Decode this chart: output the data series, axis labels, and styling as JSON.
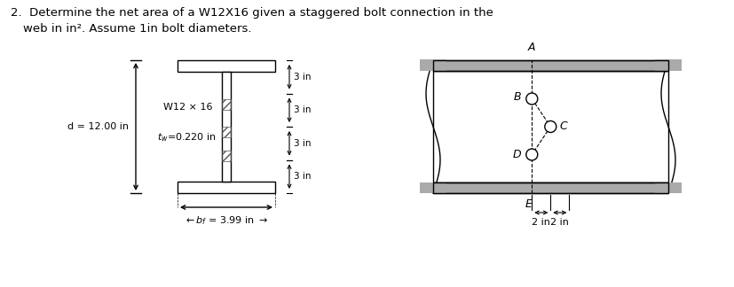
{
  "title_line1": "2.  Determine the net area of a W12X16 given a staggered bolt connection in the",
  "title_line2": "web in in². Assume 1in bolt diameters.",
  "d_label": "d = 12.00 in",
  "tw_label": "$t_w$=0.220 in",
  "section_label": "W12 × 16",
  "bf_text": "$\\leftarrow b_f$ = 3.99 in $\\rightarrow$",
  "spacing_labels": [
    "3 in",
    "3 in",
    "3 in",
    "3 in"
  ],
  "bolt_labels": [
    "A",
    "B",
    "C",
    "D",
    "E"
  ],
  "dim_labels": [
    "2 in",
    "2 in"
  ],
  "bg_color": "#ffffff",
  "line_color": "#000000",
  "gray_flange": "#aaaaaa"
}
